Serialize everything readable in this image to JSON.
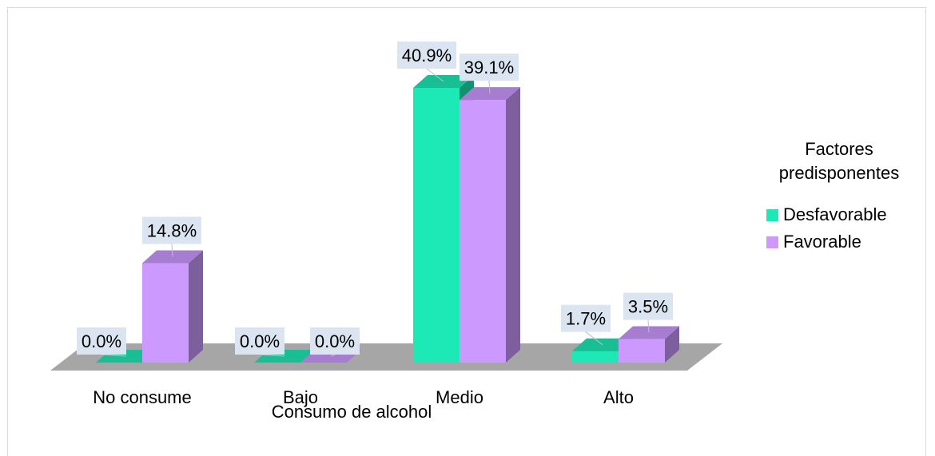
{
  "chart_data": {
    "type": "bar",
    "categories": [
      "No consume",
      "Bajo",
      "Medio",
      "Alto"
    ],
    "series": [
      {
        "name": "Desfavorable",
        "values": [
          0.0,
          0.0,
          40.9,
          1.7
        ],
        "labels": [
          "0.0%",
          "0.0%",
          "40.9%",
          "1.7%"
        ],
        "color": "#1de9b6"
      },
      {
        "name": "Favorable",
        "values": [
          14.8,
          0.0,
          39.1,
          3.5
        ],
        "labels": [
          "14.8%",
          "0.0%",
          "39.1%",
          "3.5%"
        ],
        "color": "#cc99ff"
      }
    ],
    "xlabel": "Consumo de alcohol",
    "legend_title": "Factores predisponentes",
    "legend_position": "right",
    "ylim": [
      0,
      45
    ],
    "grid": false,
    "style": "3d-column"
  }
}
